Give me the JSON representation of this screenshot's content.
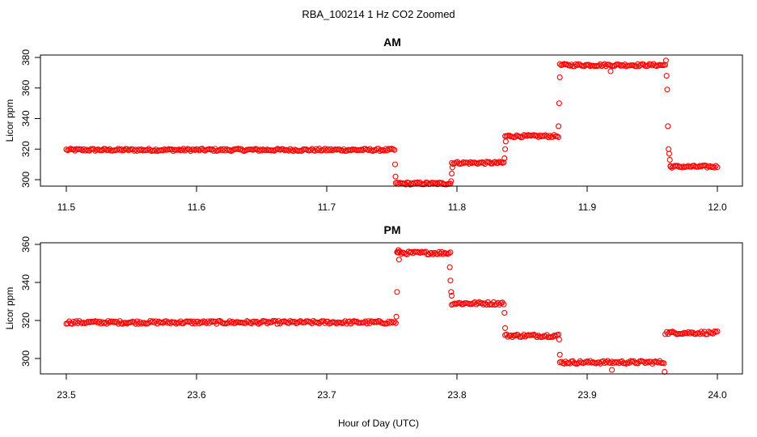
{
  "figure": {
    "title": "RBA_100214  1 Hz CO2 Zoomed",
    "xlabel": "Hour of Day (UTC)"
  },
  "chart_data": [
    {
      "type": "scatter",
      "title": "AM",
      "xlabel": "Hour of Day (UTC)",
      "ylabel": "Licor ppm",
      "xlim": [
        11.5,
        12.0
      ],
      "ylim": [
        297,
        380
      ],
      "xticks": [
        "11.5",
        "11.6",
        "11.7",
        "11.8",
        "11.9",
        "12.0"
      ],
      "yticks": [
        "300",
        "320",
        "340",
        "360",
        "380"
      ],
      "marker_color": "#ff0000",
      "grid": false,
      "segments": [
        {
          "x_start": 11.5,
          "x_end": 11.752,
          "y": 319.5
        },
        {
          "x_start": 11.753,
          "x_end": 11.795,
          "y": 297.5
        },
        {
          "x_start": 11.796,
          "x_end": 11.836,
          "y": 311
        },
        {
          "x_start": 11.837,
          "x_end": 11.878,
          "y": 328.5
        },
        {
          "x_start": 11.879,
          "x_end": 11.96,
          "y": 375
        },
        {
          "x_start": 11.964,
          "x_end": 12.0,
          "y": 308.5
        }
      ],
      "transition_points": [
        {
          "x": 11.7525,
          "y": 310
        },
        {
          "x": 11.7528,
          "y": 302
        },
        {
          "x": 11.7955,
          "y": 299
        },
        {
          "x": 11.796,
          "y": 304
        },
        {
          "x": 11.7965,
          "y": 308
        },
        {
          "x": 11.8365,
          "y": 314
        },
        {
          "x": 11.837,
          "y": 320
        },
        {
          "x": 11.8375,
          "y": 325
        },
        {
          "x": 11.878,
          "y": 335
        },
        {
          "x": 11.8785,
          "y": 350
        },
        {
          "x": 11.879,
          "y": 367
        },
        {
          "x": 11.9605,
          "y": 378
        },
        {
          "x": 11.961,
          "y": 368
        },
        {
          "x": 11.9615,
          "y": 359
        },
        {
          "x": 11.962,
          "y": 335
        },
        {
          "x": 11.9625,
          "y": 320
        },
        {
          "x": 11.963,
          "y": 317
        },
        {
          "x": 11.9635,
          "y": 313
        },
        {
          "x": 11.964,
          "y": 309
        },
        {
          "x": 11.918,
          "y": 371
        }
      ]
    },
    {
      "type": "scatter",
      "title": "PM",
      "xlabel": "Hour of Day (UTC)",
      "ylabel": "Licor ppm",
      "xlim": [
        23.5,
        24.0
      ],
      "ylim": [
        290,
        360
      ],
      "xticks": [
        "23.5",
        "23.6",
        "23.7",
        "23.8",
        "23.9",
        "24.0"
      ],
      "yticks": [
        "300",
        "320",
        "340",
        "360"
      ],
      "marker_color": "#ff0000",
      "grid": false,
      "segments": [
        {
          "x_start": 23.5,
          "x_end": 23.753,
          "y": 319
        },
        {
          "x_start": 23.754,
          "x_end": 23.795,
          "y": 355.5
        },
        {
          "x_start": 23.796,
          "x_end": 23.836,
          "y": 329
        },
        {
          "x_start": 23.837,
          "x_end": 23.878,
          "y": 312
        },
        {
          "x_start": 23.879,
          "x_end": 23.959,
          "y": 298
        },
        {
          "x_start": 23.96,
          "x_end": 24.0,
          "y": 313.5
        }
      ],
      "transition_points": [
        {
          "x": 23.7535,
          "y": 322
        },
        {
          "x": 23.754,
          "y": 335
        },
        {
          "x": 23.7545,
          "y": 356
        },
        {
          "x": 23.755,
          "y": 357
        },
        {
          "x": 23.7555,
          "y": 352
        },
        {
          "x": 23.7945,
          "y": 348
        },
        {
          "x": 23.795,
          "y": 341
        },
        {
          "x": 23.7955,
          "y": 335
        },
        {
          "x": 23.796,
          "y": 333
        },
        {
          "x": 23.8365,
          "y": 324
        },
        {
          "x": 23.837,
          "y": 316
        },
        {
          "x": 23.8785,
          "y": 310
        },
        {
          "x": 23.879,
          "y": 302
        },
        {
          "x": 23.9595,
          "y": 293
        },
        {
          "x": 23.919,
          "y": 294
        }
      ]
    }
  ]
}
